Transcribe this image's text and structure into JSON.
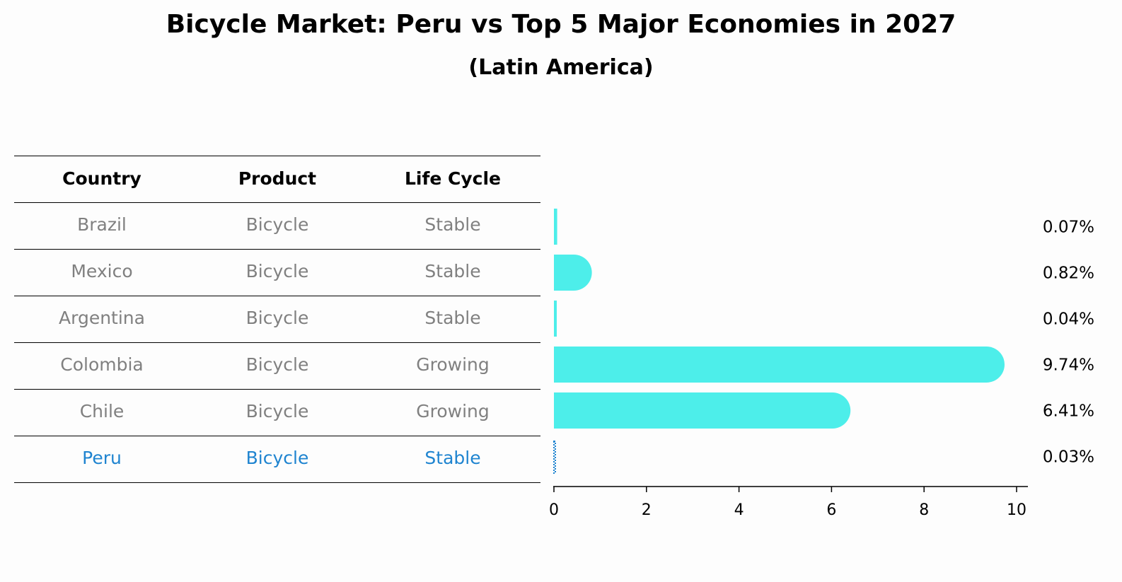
{
  "title": "Bicycle Market: Peru vs Top 5 Major Economies in 2027",
  "subtitle": "(Latin America)",
  "table": {
    "headers": [
      "Country",
      "Product",
      "Life Cycle"
    ],
    "rows": [
      {
        "country": "Brazil",
        "product": "Bicycle",
        "life_cycle": "Stable",
        "highlight": false
      },
      {
        "country": "Mexico",
        "product": "Bicycle",
        "life_cycle": "Stable",
        "highlight": false
      },
      {
        "country": "Argentina",
        "product": "Bicycle",
        "life_cycle": "Stable",
        "highlight": false
      },
      {
        "country": "Colombia",
        "product": "Bicycle",
        "life_cycle": "Growing",
        "highlight": false
      },
      {
        "country": "Chile",
        "product": "Bicycle",
        "life_cycle": "Growing",
        "highlight": false
      },
      {
        "country": "Peru",
        "product": "Bicycle",
        "life_cycle": "Stable",
        "highlight": true
      }
    ]
  },
  "chart_data": {
    "type": "bar",
    "orientation": "horizontal",
    "categories": [
      "Brazil",
      "Mexico",
      "Argentina",
      "Colombia",
      "Chile",
      "Peru"
    ],
    "values": [
      0.07,
      0.82,
      0.04,
      9.74,
      6.41,
      0.03
    ],
    "value_labels": [
      "0.07%",
      "0.82%",
      "0.04%",
      "9.74%",
      "6.41%",
      "0.03%"
    ],
    "xlim": [
      0,
      10
    ],
    "xticks": [
      "0",
      "2",
      "4",
      "6",
      "8",
      "10"
    ],
    "highlight_category": "Peru",
    "grid": false
  },
  "colors": {
    "bar": "#4deeea",
    "highlight": "#1f84d0",
    "muted_text": "#808080"
  }
}
